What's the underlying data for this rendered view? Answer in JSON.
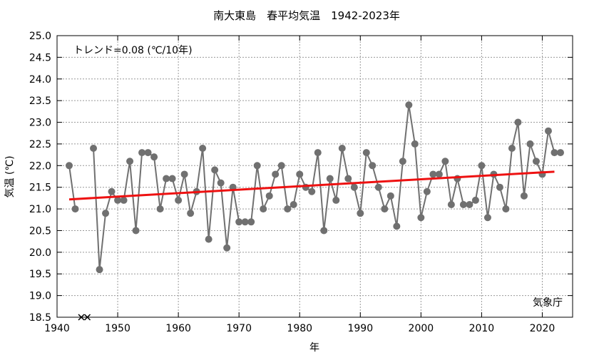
{
  "chart_data": {
    "type": "line",
    "title": "南大東島　春平均気温　1942-2023年",
    "xlabel": "年",
    "ylabel": "気温 (℃)",
    "xlim": [
      1940,
      2025
    ],
    "ylim": [
      18.5,
      25.0
    ],
    "x_ticks": [
      "1940",
      "1950",
      "1960",
      "1970",
      "1980",
      "1990",
      "2000",
      "2010",
      "2020"
    ],
    "y_ticks": [
      "18.5",
      "19.0",
      "19.5",
      "20.0",
      "20.5",
      "21.0",
      "21.5",
      "22.0",
      "22.5",
      "23.0",
      "23.5",
      "24.0",
      "24.5",
      "25.0"
    ],
    "grid": true,
    "trend_label": "トレンド=0.08 (℃/10年)",
    "source_label": "気象庁",
    "series": [
      {
        "color": "#707070",
        "points": [
          [
            1942,
            22.0
          ],
          [
            1943,
            21.0
          ],
          [
            1946,
            22.4
          ],
          [
            1947,
            19.6
          ],
          [
            1948,
            20.9
          ],
          [
            1949,
            21.4
          ],
          [
            1950,
            21.2
          ],
          [
            1951,
            21.2
          ],
          [
            1952,
            22.1
          ],
          [
            1953,
            20.5
          ],
          [
            1954,
            22.3
          ],
          [
            1955,
            22.3
          ],
          [
            1956,
            22.2
          ],
          [
            1957,
            21.0
          ],
          [
            1958,
            21.7
          ],
          [
            1959,
            21.7
          ],
          [
            1960,
            21.2
          ],
          [
            1961,
            21.8
          ],
          [
            1962,
            20.9
          ],
          [
            1963,
            21.4
          ],
          [
            1964,
            22.4
          ],
          [
            1965,
            20.3
          ],
          [
            1966,
            21.9
          ],
          [
            1967,
            21.6
          ],
          [
            1968,
            20.1
          ],
          [
            1969,
            21.5
          ],
          [
            1970,
            20.7
          ],
          [
            1971,
            20.7
          ],
          [
            1972,
            20.7
          ],
          [
            1973,
            22.0
          ],
          [
            1974,
            21.0
          ],
          [
            1975,
            21.3
          ],
          [
            1976,
            21.8
          ],
          [
            1977,
            22.0
          ],
          [
            1978,
            21.0
          ],
          [
            1979,
            21.1
          ],
          [
            1980,
            21.8
          ],
          [
            1981,
            21.5
          ],
          [
            1982,
            21.4
          ],
          [
            1983,
            22.3
          ],
          [
            1984,
            20.5
          ],
          [
            1985,
            21.7
          ],
          [
            1986,
            21.2
          ],
          [
            1987,
            22.4
          ],
          [
            1988,
            21.7
          ],
          [
            1989,
            21.5
          ],
          [
            1990,
            20.9
          ],
          [
            1991,
            22.3
          ],
          [
            1992,
            22.0
          ],
          [
            1993,
            21.5
          ],
          [
            1994,
            21.0
          ],
          [
            1995,
            21.3
          ],
          [
            1996,
            20.6
          ],
          [
            1997,
            22.1
          ],
          [
            1998,
            23.4
          ],
          [
            1999,
            22.5
          ],
          [
            2000,
            20.8
          ],
          [
            2001,
            21.4
          ],
          [
            2002,
            21.8
          ],
          [
            2003,
            21.8
          ],
          [
            2004,
            22.1
          ],
          [
            2005,
            21.1
          ],
          [
            2006,
            21.7
          ],
          [
            2007,
            21.1
          ],
          [
            2008,
            21.1
          ],
          [
            2009,
            21.2
          ],
          [
            2010,
            22.0
          ],
          [
            2011,
            20.8
          ],
          [
            2012,
            21.8
          ],
          [
            2013,
            21.5
          ],
          [
            2014,
            21.0
          ],
          [
            2015,
            22.4
          ],
          [
            2016,
            23.0
          ],
          [
            2017,
            21.3
          ],
          [
            2018,
            22.5
          ],
          [
            2019,
            22.1
          ],
          [
            2020,
            21.8
          ],
          [
            2021,
            22.8
          ],
          [
            2022,
            22.3
          ],
          [
            2023,
            22.3
          ]
        ]
      }
    ],
    "trend_line": {
      "color": "#ee1111",
      "from": [
        1942,
        21.22
      ],
      "to": [
        2022,
        21.86
      ]
    },
    "missing_markers": {
      "years": [
        1944,
        1945
      ],
      "color": "#000000"
    }
  }
}
